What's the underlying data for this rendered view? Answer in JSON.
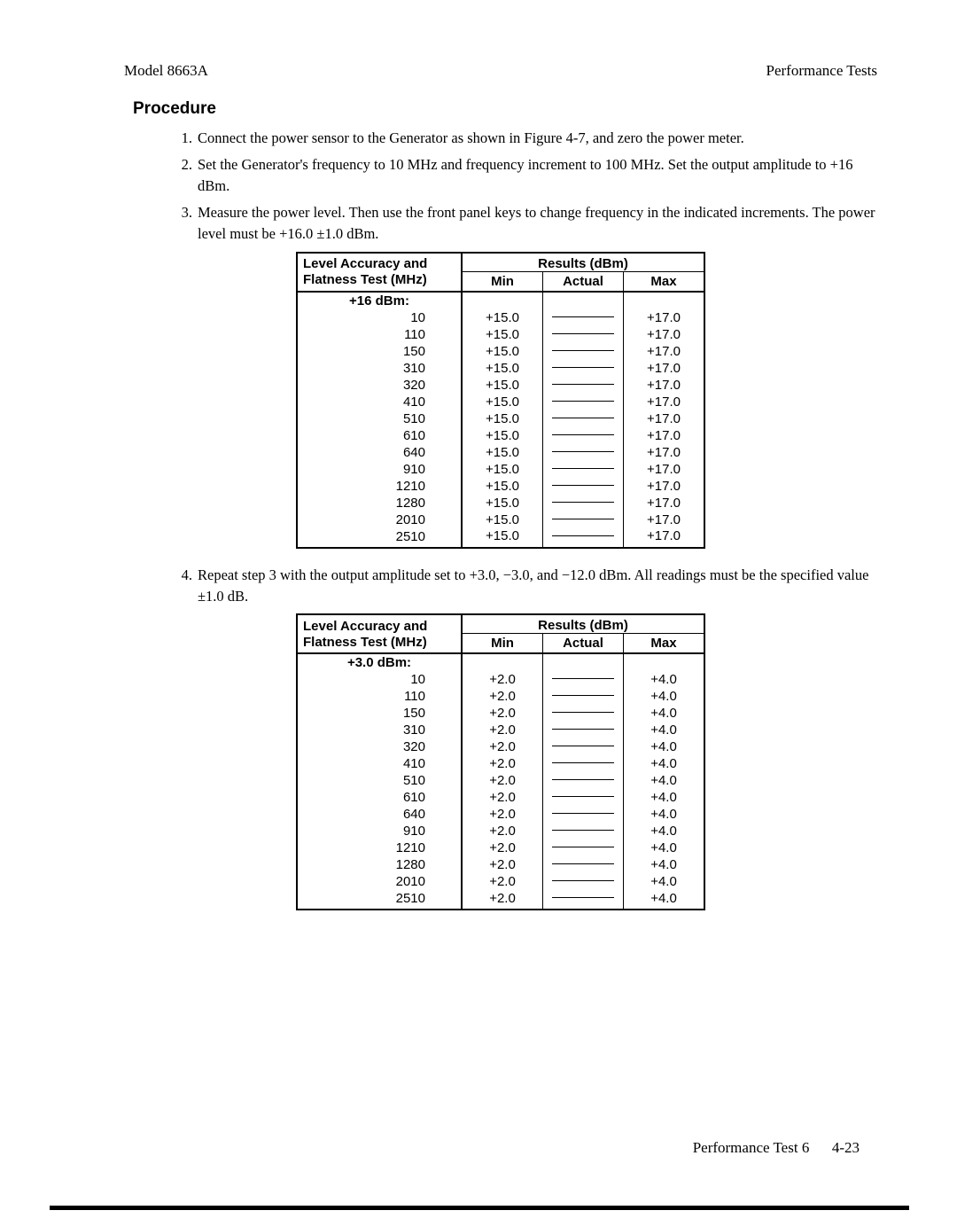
{
  "header": {
    "model": "Model 8663A",
    "right": "Performance Tests"
  },
  "section_title": "Procedure",
  "steps": {
    "s1_num": "1.",
    "s1_text": "Connect the power sensor to the Generator as shown in Figure 4-7, and zero the power meter.",
    "s2_num": "2.",
    "s2_text": "Set the Generator's frequency to 10 MHz and frequency increment to 100 MHz. Set the output amplitude to +16 dBm.",
    "s3_num": "3.",
    "s3_text": "Measure the power level. Then use the front panel keys to change frequency in the indicated increments. The power level must be +16.0 ±1.0 dBm.",
    "s4_num": "4.",
    "s4_text": "Repeat step 3 with the output amplitude set to +3.0, −3.0, and −12.0 dBm. All readings must be the specified value ±1.0 dB."
  },
  "table_headers": {
    "col1_line1": "Level Accuracy and",
    "col1_line2": "Flatness Test (MHz)",
    "results": "Results (dBm)",
    "min": "Min",
    "actual": "Actual",
    "max": "Max"
  },
  "table1": {
    "label": "+16 dBm:",
    "rows": [
      {
        "f": "10",
        "min": "+15.0",
        "max": "+17.0"
      },
      {
        "f": "110",
        "min": "+15.0",
        "max": "+17.0"
      },
      {
        "f": "150",
        "min": "+15.0",
        "max": "+17.0"
      },
      {
        "f": "310",
        "min": "+15.0",
        "max": "+17.0"
      },
      {
        "f": "320",
        "min": "+15.0",
        "max": "+17.0"
      },
      {
        "f": "410",
        "min": "+15.0",
        "max": "+17.0"
      },
      {
        "f": "510",
        "min": "+15.0",
        "max": "+17.0"
      },
      {
        "f": "610",
        "min": "+15.0",
        "max": "+17.0"
      },
      {
        "f": "640",
        "min": "+15.0",
        "max": "+17.0"
      },
      {
        "f": "910",
        "min": "+15.0",
        "max": "+17.0"
      },
      {
        "f": "1210",
        "min": "+15.0",
        "max": "+17.0"
      },
      {
        "f": "1280",
        "min": "+15.0",
        "max": "+17.0"
      },
      {
        "f": "2010",
        "min": "+15.0",
        "max": "+17.0"
      },
      {
        "f": "2510",
        "min": "+15.0",
        "max": "+17.0"
      }
    ]
  },
  "table2": {
    "label": "+3.0 dBm:",
    "rows": [
      {
        "f": "10",
        "min": "+2.0",
        "max": "+4.0"
      },
      {
        "f": "110",
        "min": "+2.0",
        "max": "+4.0"
      },
      {
        "f": "150",
        "min": "+2.0",
        "max": "+4.0"
      },
      {
        "f": "310",
        "min": "+2.0",
        "max": "+4.0"
      },
      {
        "f": "320",
        "min": "+2.0",
        "max": "+4.0"
      },
      {
        "f": "410",
        "min": "+2.0",
        "max": "+4.0"
      },
      {
        "f": "510",
        "min": "+2.0",
        "max": "+4.0"
      },
      {
        "f": "610",
        "min": "+2.0",
        "max": "+4.0"
      },
      {
        "f": "640",
        "min": "+2.0",
        "max": "+4.0"
      },
      {
        "f": "910",
        "min": "+2.0",
        "max": "+4.0"
      },
      {
        "f": "1210",
        "min": "+2.0",
        "max": "+4.0"
      },
      {
        "f": "1280",
        "min": "+2.0",
        "max": "+4.0"
      },
      {
        "f": "2010",
        "min": "+2.0",
        "max": "+4.0"
      },
      {
        "f": "2510",
        "min": "+2.0",
        "max": "+4.0"
      }
    ]
  },
  "footer": {
    "left": "Performance Test 6",
    "right": "4-23"
  }
}
